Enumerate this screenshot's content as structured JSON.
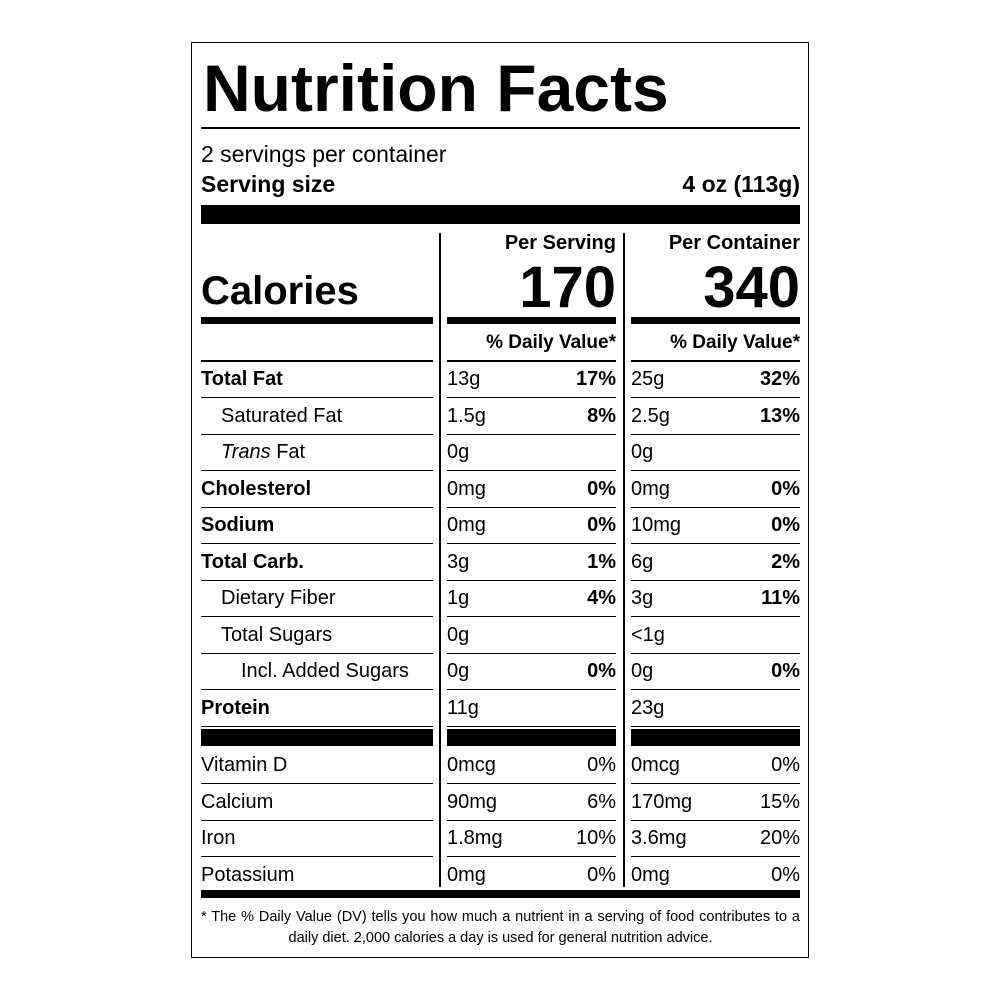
{
  "title": "Nutrition Facts",
  "servings": "2 servings per container",
  "serving_size": {
    "label": "Serving size",
    "value": "4 oz (113g)"
  },
  "columns": {
    "per_serving": "Per Serving",
    "per_container": "Per Container"
  },
  "calories": {
    "label": "Calories",
    "per_serving": 170,
    "per_container": 340
  },
  "daily_value_heading": "% Daily Value*",
  "nutrients": [
    {
      "name": "Total Fat",
      "per_serving": {
        "amount": "13g",
        "dv": "17%"
      },
      "per_container": {
        "amount": "25g",
        "dv": "32%"
      },
      "sub": [
        {
          "name": "Saturated Fat",
          "per_serving": {
            "amount": "1.5g",
            "dv": "8%"
          },
          "per_container": {
            "amount": "2.5g",
            "dv": "13%"
          }
        },
        {
          "name_italic": "Trans",
          "name": " Fat",
          "per_serving": {
            "amount": "0g"
          },
          "per_container": {
            "amount": "0g"
          }
        }
      ]
    },
    {
      "name": "Cholesterol",
      "per_serving": {
        "amount": "0mg",
        "dv": "0%"
      },
      "per_container": {
        "amount": "0mg",
        "dv": "0%"
      }
    },
    {
      "name": "Sodium",
      "per_serving": {
        "amount": "0mg",
        "dv": "0%"
      },
      "per_container": {
        "amount": "10mg",
        "dv": "0%"
      }
    },
    {
      "name": "Total Carb.",
      "per_serving": {
        "amount": "3g",
        "dv": "1%"
      },
      "per_container": {
        "amount": "6g",
        "dv": "2%"
      },
      "sub": [
        {
          "name": "Dietary Fiber",
          "per_serving": {
            "amount": "1g",
            "dv": "4%"
          },
          "per_container": {
            "amount": "3g",
            "dv": "11%"
          }
        },
        {
          "name": "Total Sugars",
          "per_serving": {
            "amount": "0g"
          },
          "per_container": {
            "amount": "<1g"
          },
          "sub": [
            {
              "name": "Incl. Added Sugars",
              "per_serving": {
                "amount": "0g",
                "dv": "0%"
              },
              "per_container": {
                "amount": "0g",
                "dv": "0%"
              }
            }
          ]
        }
      ]
    },
    {
      "name": "Protein",
      "per_serving": {
        "amount": "11g"
      },
      "per_container": {
        "amount": "23g"
      }
    }
  ],
  "vitamins": [
    {
      "name": "Vitamin D",
      "per_serving": {
        "amount": "0mcg",
        "dv": "0%"
      },
      "per_container": {
        "amount": "0mcg",
        "dv": "0%"
      }
    },
    {
      "name": "Calcium",
      "per_serving": {
        "amount": "90mg",
        "dv": "6%"
      },
      "per_container": {
        "amount": "170mg",
        "dv": "15%"
      }
    },
    {
      "name": "Iron",
      "per_serving": {
        "amount": "1.8mg",
        "dv": "10%"
      },
      "per_container": {
        "amount": "3.6mg",
        "dv": "20%"
      }
    },
    {
      "name": "Potassium",
      "per_serving": {
        "amount": "0mg",
        "dv": "0%"
      },
      "per_container": {
        "amount": "0mg",
        "dv": "0%"
      }
    }
  ],
  "footnote": {
    "marker": "*",
    "text": "The % Daily Value (DV) tells you how much a nutrient in a serving of food contributes to a daily diet. 2,000 calories a day is used for general nutrition advice."
  }
}
